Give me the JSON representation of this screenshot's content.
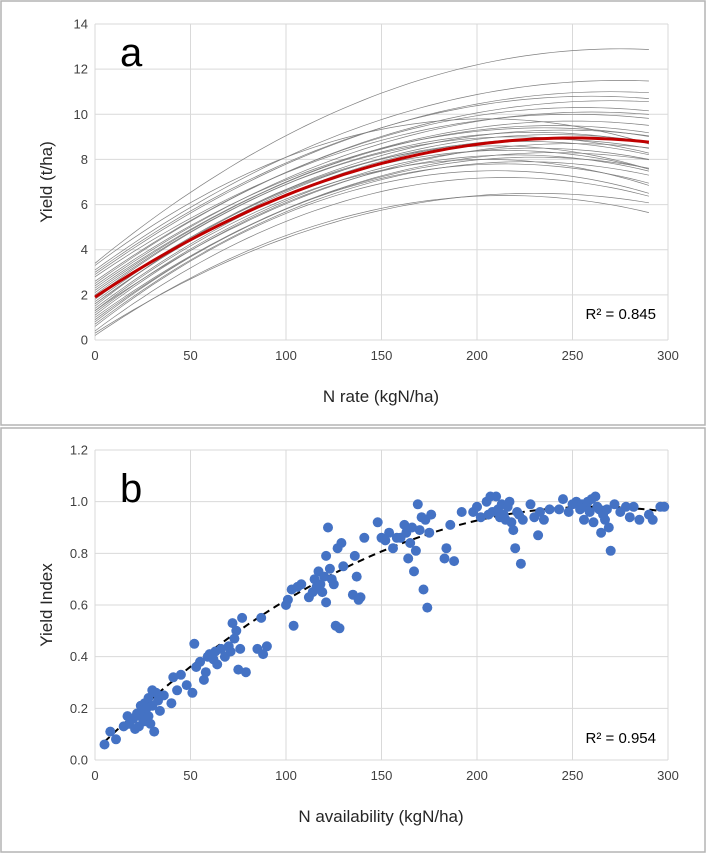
{
  "colors": {
    "border": "#b4b4b4",
    "grid": "#d9d9d9",
    "curves": "#7f7f7f",
    "mean_curve": "#c00000",
    "points": "#4472c4",
    "fit_line": "#000000"
  },
  "chart_data": [
    {
      "type": "line",
      "panel_label": "a",
      "xlabel": "N rate (kgN/ha)",
      "ylabel": "Yield (t/ha)",
      "xlim": [
        0,
        300
      ],
      "ylim": [
        0,
        14
      ],
      "xticks": [
        0,
        50,
        100,
        150,
        200,
        250,
        300
      ],
      "yticks": [
        0,
        2,
        4,
        6,
        8,
        10,
        12,
        14
      ],
      "grid": true,
      "annotation": "R² = 0.845",
      "annotation_position": "bottom-right",
      "mean_curve": {
        "x_max": 290,
        "intercept": 1.9,
        "peak_x": 250,
        "peak_y": 8.95
      },
      "curves": [
        {
          "x_max": 290,
          "intercept": 3.4,
          "peak_x": 275,
          "peak_y": 12.9
        },
        {
          "x_max": 290,
          "intercept": 3.1,
          "peak_x": 275,
          "peak_y": 11.5
        },
        {
          "x_max": 290,
          "intercept": 2.9,
          "peak_x": 270,
          "peak_y": 11.0
        },
        {
          "x_max": 290,
          "intercept": 3.0,
          "peak_x": 260,
          "peak_y": 10.8
        },
        {
          "x_max": 290,
          "intercept": 2.6,
          "peak_x": 270,
          "peak_y": 10.6
        },
        {
          "x_max": 290,
          "intercept": 2.5,
          "peak_x": 255,
          "peak_y": 10.3
        },
        {
          "x_max": 290,
          "intercept": 2.3,
          "peak_x": 260,
          "peak_y": 10.1
        },
        {
          "x_max": 290,
          "intercept": 2.8,
          "peak_x": 250,
          "peak_y": 10.0
        },
        {
          "x_max": 290,
          "intercept": 3.3,
          "peak_x": 205,
          "peak_y": 9.8
        },
        {
          "x_max": 290,
          "intercept": 2.2,
          "peak_x": 250,
          "peak_y": 9.7
        },
        {
          "x_max": 290,
          "intercept": 2.1,
          "peak_x": 240,
          "peak_y": 9.5
        },
        {
          "x_max": 290,
          "intercept": 2.4,
          "peak_x": 235,
          "peak_y": 9.4
        },
        {
          "x_max": 290,
          "intercept": 1.8,
          "peak_x": 245,
          "peak_y": 9.3
        },
        {
          "x_max": 290,
          "intercept": 2.0,
          "peak_x": 230,
          "peak_y": 9.2
        },
        {
          "x_max": 290,
          "intercept": 1.6,
          "peak_x": 240,
          "peak_y": 9.1
        },
        {
          "x_max": 290,
          "intercept": 1.9,
          "peak_x": 220,
          "peak_y": 9.0
        },
        {
          "x_max": 290,
          "intercept": 1.4,
          "peak_x": 235,
          "peak_y": 8.9
        },
        {
          "x_max": 290,
          "intercept": 1.7,
          "peak_x": 225,
          "peak_y": 8.8
        },
        {
          "x_max": 290,
          "intercept": 1.3,
          "peak_x": 250,
          "peak_y": 8.7
        },
        {
          "x_max": 290,
          "intercept": 1.5,
          "peak_x": 210,
          "peak_y": 8.6
        },
        {
          "x_max": 290,
          "intercept": 1.2,
          "peak_x": 230,
          "peak_y": 8.5
        },
        {
          "x_max": 290,
          "intercept": 1.6,
          "peak_x": 215,
          "peak_y": 8.4
        },
        {
          "x_max": 290,
          "intercept": 1.0,
          "peak_x": 240,
          "peak_y": 8.3
        },
        {
          "x_max": 290,
          "intercept": 1.1,
          "peak_x": 220,
          "peak_y": 8.2
        },
        {
          "x_max": 290,
          "intercept": 0.9,
          "peak_x": 230,
          "peak_y": 8.1
        },
        {
          "x_max": 290,
          "intercept": 1.3,
          "peak_x": 205,
          "peak_y": 8.0
        },
        {
          "x_max": 290,
          "intercept": 0.7,
          "peak_x": 225,
          "peak_y": 7.9
        },
        {
          "x_max": 290,
          "intercept": 0.8,
          "peak_x": 215,
          "peak_y": 7.8
        },
        {
          "x_max": 290,
          "intercept": 0.6,
          "peak_x": 210,
          "peak_y": 7.5
        },
        {
          "x_max": 290,
          "intercept": 0.4,
          "peak_x": 215,
          "peak_y": 7.2
        },
        {
          "x_max": 290,
          "intercept": 0.3,
          "peak_x": 230,
          "peak_y": 6.5
        },
        {
          "x_max": 290,
          "intercept": 0.2,
          "peak_x": 215,
          "peak_y": 6.4
        }
      ]
    },
    {
      "type": "scatter",
      "panel_label": "b",
      "xlabel": "N availability (kgN/ha)",
      "ylabel": "Yield  Index",
      "xlim": [
        0,
        300
      ],
      "ylim": [
        0,
        1.2
      ],
      "xticks": [
        0,
        50,
        100,
        150,
        200,
        250,
        300
      ],
      "yticks": [
        0.0,
        0.2,
        0.4,
        0.6,
        0.8,
        1.0,
        1.2
      ],
      "yticks_text": [
        "0.0",
        "0.2",
        "0.4",
        "0.6",
        "0.8",
        "1.0",
        "1.2"
      ],
      "grid": true,
      "annotation": "R² = 0.954",
      "annotation_position": "bottom-right",
      "fit": {
        "style": "dashed",
        "x_start": 5,
        "x_end": 298,
        "intercept": 0.035,
        "peak_x": 262,
        "peak_y": 0.98
      },
      "points": [
        [
          5,
          0.06
        ],
        [
          8,
          0.11
        ],
        [
          11,
          0.08
        ],
        [
          15,
          0.13
        ],
        [
          17,
          0.17
        ],
        [
          18,
          0.14
        ],
        [
          20,
          0.16
        ],
        [
          21,
          0.12
        ],
        [
          22,
          0.18
        ],
        [
          23,
          0.13
        ],
        [
          24,
          0.21
        ],
        [
          25,
          0.16
        ],
        [
          25,
          0.19
        ],
        [
          26,
          0.15
        ],
        [
          26,
          0.22
        ],
        [
          27,
          0.2
        ],
        [
          28,
          0.24
        ],
        [
          28,
          0.17
        ],
        [
          29,
          0.14
        ],
        [
          30,
          0.27
        ],
        [
          30,
          0.21
        ],
        [
          31,
          0.11
        ],
        [
          32,
          0.26
        ],
        [
          33,
          0.23
        ],
        [
          34,
          0.19
        ],
        [
          36,
          0.25
        ],
        [
          40,
          0.22
        ],
        [
          41,
          0.32
        ],
        [
          43,
          0.27
        ],
        [
          45,
          0.33
        ],
        [
          48,
          0.29
        ],
        [
          51,
          0.26
        ],
        [
          52,
          0.45
        ],
        [
          53,
          0.36
        ],
        [
          55,
          0.38
        ],
        [
          57,
          0.31
        ],
        [
          58,
          0.34
        ],
        [
          59,
          0.4
        ],
        [
          60,
          0.41
        ],
        [
          62,
          0.39
        ],
        [
          63,
          0.42
        ],
        [
          64,
          0.37
        ],
        [
          66,
          0.43
        ],
        [
          68,
          0.4
        ],
        [
          70,
          0.44
        ],
        [
          71,
          0.42
        ],
        [
          72,
          0.53
        ],
        [
          73,
          0.47
        ],
        [
          74,
          0.5
        ],
        [
          75,
          0.35
        ],
        [
          76,
          0.43
        ],
        [
          77,
          0.55
        ],
        [
          79,
          0.34
        ],
        [
          85,
          0.43
        ],
        [
          87,
          0.55
        ],
        [
          88,
          0.41
        ],
        [
          90,
          0.44
        ],
        [
          100,
          0.6
        ],
        [
          101,
          0.62
        ],
        [
          103,
          0.66
        ],
        [
          104,
          0.52
        ],
        [
          106,
          0.67
        ],
        [
          108,
          0.68
        ],
        [
          112,
          0.63
        ],
        [
          114,
          0.65
        ],
        [
          115,
          0.7
        ],
        [
          116,
          0.67
        ],
        [
          117,
          0.73
        ],
        [
          118,
          0.68
        ],
        [
          119,
          0.65
        ],
        [
          120,
          0.71
        ],
        [
          121,
          0.79
        ],
        [
          121,
          0.61
        ],
        [
          122,
          0.9
        ],
        [
          123,
          0.74
        ],
        [
          124,
          0.7
        ],
        [
          125,
          0.68
        ],
        [
          126,
          0.52
        ],
        [
          127,
          0.82
        ],
        [
          128,
          0.51
        ],
        [
          129,
          0.84
        ],
        [
          130,
          0.75
        ],
        [
          135,
          0.64
        ],
        [
          136,
          0.79
        ],
        [
          137,
          0.71
        ],
        [
          138,
          0.62
        ],
        [
          139,
          0.63
        ],
        [
          141,
          0.86
        ],
        [
          148,
          0.92
        ],
        [
          150,
          0.86
        ],
        [
          152,
          0.85
        ],
        [
          154,
          0.88
        ],
        [
          156,
          0.82
        ],
        [
          158,
          0.86
        ],
        [
          160,
          0.86
        ],
        [
          162,
          0.91
        ],
        [
          163,
          0.88
        ],
        [
          164,
          0.78
        ],
        [
          165,
          0.84
        ],
        [
          166,
          0.9
        ],
        [
          167,
          0.73
        ],
        [
          168,
          0.81
        ],
        [
          169,
          0.99
        ],
        [
          170,
          0.89
        ],
        [
          171,
          0.94
        ],
        [
          172,
          0.66
        ],
        [
          173,
          0.93
        ],
        [
          174,
          0.59
        ],
        [
          175,
          0.88
        ],
        [
          176,
          0.95
        ],
        [
          183,
          0.78
        ],
        [
          184,
          0.82
        ],
        [
          186,
          0.91
        ],
        [
          188,
          0.77
        ],
        [
          192,
          0.96
        ],
        [
          198,
          0.96
        ],
        [
          200,
          0.98
        ],
        [
          202,
          0.94
        ],
        [
          205,
          1.0
        ],
        [
          206,
          0.95
        ],
        [
          207,
          1.02
        ],
        [
          208,
          0.96
        ],
        [
          210,
          1.02
        ],
        [
          211,
          0.97
        ],
        [
          212,
          0.94
        ],
        [
          213,
          0.99
        ],
        [
          214,
          0.95
        ],
        [
          215,
          0.93
        ],
        [
          216,
          0.98
        ],
        [
          217,
          1.0
        ],
        [
          218,
          0.92
        ],
        [
          219,
          0.89
        ],
        [
          220,
          0.82
        ],
        [
          221,
          0.96
        ],
        [
          222,
          0.95
        ],
        [
          223,
          0.76
        ],
        [
          224,
          0.93
        ],
        [
          228,
          0.99
        ],
        [
          230,
          0.94
        ],
        [
          232,
          0.87
        ],
        [
          233,
          0.96
        ],
        [
          235,
          0.93
        ],
        [
          238,
          0.97
        ],
        [
          243,
          0.97
        ],
        [
          245,
          1.01
        ],
        [
          248,
          0.96
        ],
        [
          250,
          0.99
        ],
        [
          252,
          1.0
        ],
        [
          254,
          0.97
        ],
        [
          255,
          0.99
        ],
        [
          256,
          0.93
        ],
        [
          257,
          0.98
        ],
        [
          258,
          1.0
        ],
        [
          259,
          0.96
        ],
        [
          260,
          1.01
        ],
        [
          261,
          0.92
        ],
        [
          262,
          1.02
        ],
        [
          263,
          0.98
        ],
        [
          264,
          0.97
        ],
        [
          265,
          0.88
        ],
        [
          266,
          0.95
        ],
        [
          267,
          0.93
        ],
        [
          268,
          0.97
        ],
        [
          269,
          0.9
        ],
        [
          270,
          0.81
        ],
        [
          272,
          0.99
        ],
        [
          275,
          0.96
        ],
        [
          278,
          0.98
        ],
        [
          280,
          0.94
        ],
        [
          282,
          0.98
        ],
        [
          285,
          0.93
        ],
        [
          290,
          0.95
        ],
        [
          292,
          0.93
        ],
        [
          296,
          0.98
        ],
        [
          298,
          0.98
        ]
      ]
    }
  ]
}
